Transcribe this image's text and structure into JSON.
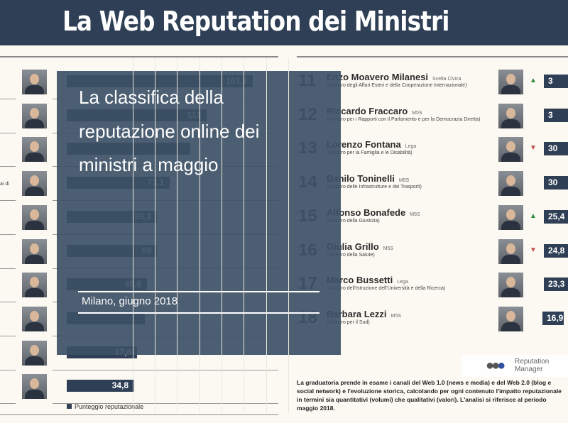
{
  "header": {
    "title": "La Web Reputation dei Ministri"
  },
  "left_list": {
    "rows": [
      {
        "value": 163.2,
        "label": "163,2"
      },
      {
        "value": 113,
        "label": "113"
      },
      {
        "value": 95,
        "label": ""
      },
      {
        "value": 73.1,
        "label": "73,1",
        "side_text": "ai di"
      },
      {
        "value": 59.1,
        "label": "59,1"
      },
      {
        "value": 59,
        "label": "59"
      },
      {
        "value": 48.6,
        "label": "48,6"
      },
      {
        "value": 46,
        "label": ""
      },
      {
        "value": 37.8,
        "label": "37,8"
      },
      {
        "value": 34.8,
        "label": "34,8"
      }
    ],
    "legend": "Punteggio reputazionale"
  },
  "right_list": {
    "rows": [
      {
        "rank": "11",
        "name": "Enzo Moavero Milanesi",
        "party": "Scelta Civica",
        "role": "(Ministro degli Affari Esteri e della Cooperazione Internazionale)",
        "trend": "up",
        "value": "3"
      },
      {
        "rank": "12",
        "name": "Riccardo Fraccaro",
        "party": "M5S",
        "role": "(Ministro per i Rapporti con il Parlamento e per la Democrazia Diretta)",
        "trend": "",
        "value": "3"
      },
      {
        "rank": "13",
        "name": "Lorenzo Fontana",
        "party": "Lega",
        "role": "(Ministro per la Famiglia e le Disabilità)",
        "trend": "down",
        "value": "30"
      },
      {
        "rank": "14",
        "name": "Danilo Toninelli",
        "party": "M5S",
        "role": "(Ministro delle Infrastrutture e dei Trasporti)",
        "trend": "",
        "value": "30"
      },
      {
        "rank": "15",
        "name": "Alfonso Bonafede",
        "party": "M5S",
        "role": "(Ministro della Giustizia)",
        "trend": "up",
        "value": "25,4"
      },
      {
        "rank": "16",
        "name": "Giulia Grillo",
        "party": "M5S",
        "role": "(Ministro della Salute)",
        "trend": "down",
        "value": "24,8"
      },
      {
        "rank": "17",
        "name": "Marco Bussetti",
        "party": "Lega",
        "role": "(Ministro dell'Istruzione dell'Università e della Ricerca)",
        "trend": "",
        "value": "23,3"
      },
      {
        "rank": "18",
        "name": "Barbara Lezzi",
        "party": "M5S",
        "role": "(Ministro per il Sud)",
        "trend": "",
        "value": "16,9"
      }
    ]
  },
  "overlay": {
    "title": "La classifica della reputazione online dei ministri a maggio",
    "subtitle": "Milano, giugno 2018"
  },
  "footer": {
    "note": "La graduatoria prende in esame i canali del Web 1.0 (news e media) e del Web 2.0 (blog e social network) e l'evoluzione storica, calcolando per ogni contenuto l'impatto reputazionale in termini sia quantitativi (volumi) che qualitativi (valori). L'analisi si riferisce al periodo maggio 2018."
  },
  "logo": {
    "text": "Reputation Manager"
  },
  "colors": {
    "navy": "#2f3f55",
    "up": "#2e8b3e",
    "down": "#c0504d",
    "background": "#fcf9f3"
  }
}
